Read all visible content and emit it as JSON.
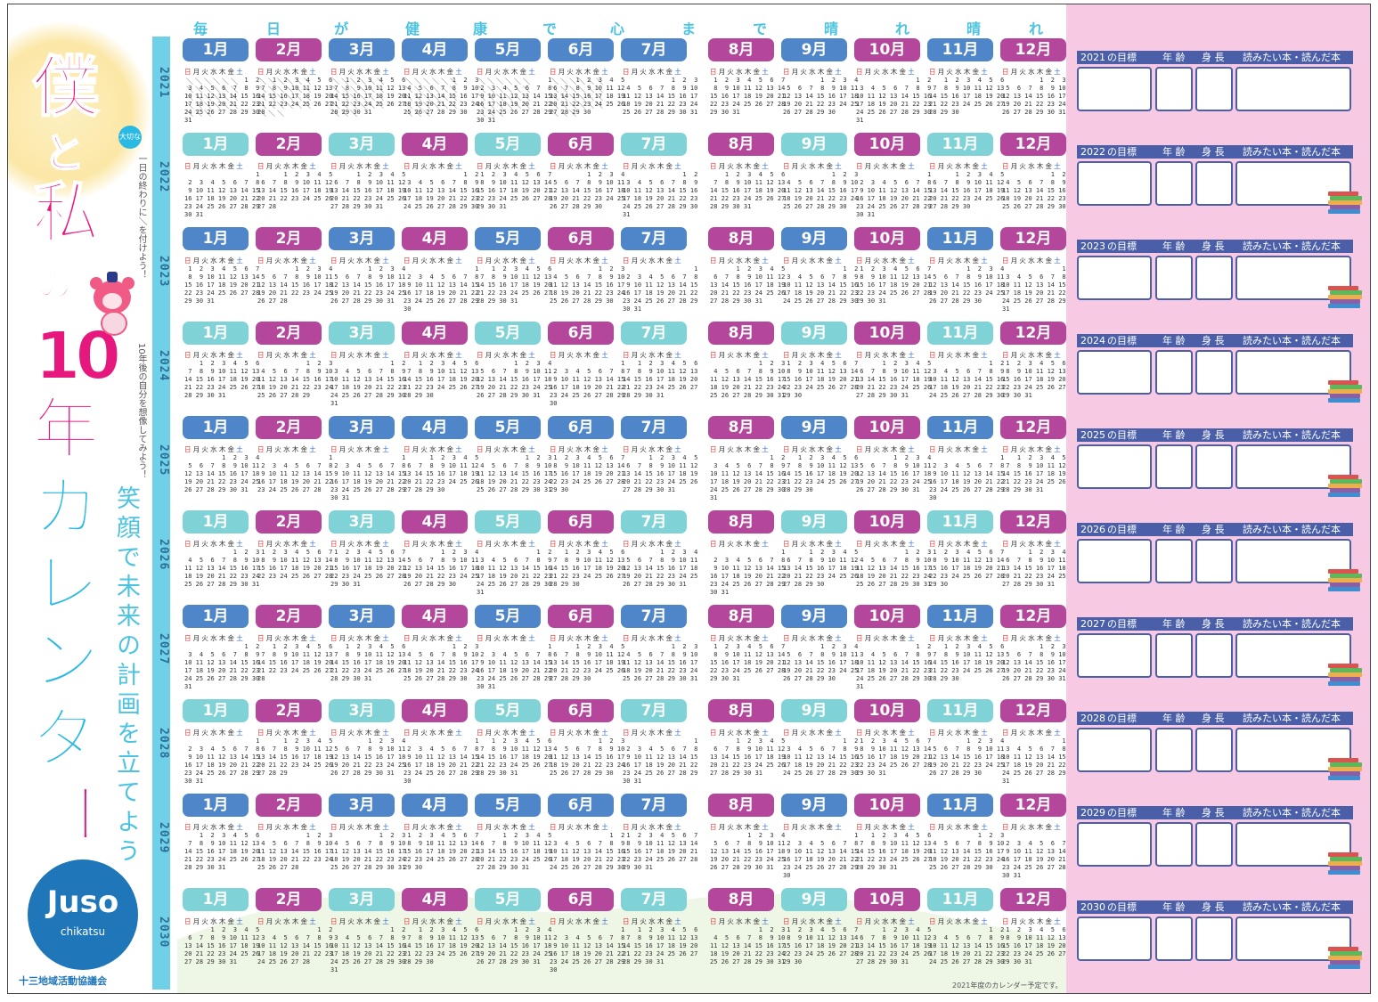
{
  "title": {
    "line1": "僕",
    "line2": "と",
    "line3": "私",
    "line4": "の",
    "line5": "10",
    "line6": "年",
    "line7": "カ",
    "line8": "レ",
    "line9": "ン",
    "line10": "ダ",
    "line11": "ー",
    "badge": "大切な",
    "memo1": "一日の終わりに＼を付けよう！",
    "memo2": "10年後の自分を想像してみよう！"
  },
  "header_chars": [
    "毎",
    "日",
    "が",
    "健",
    "康",
    "で",
    "心",
    "ま",
    "で",
    "晴",
    "れ",
    "晴",
    "れ"
  ],
  "slogan": "笑顔で未来の計画を立てよう",
  "logo": {
    "mark": "Juso",
    "sub": "chikatsu"
  },
  "organization": "十三地域活動協議会",
  "note": "2021年度のカレンダー予定です。",
  "years": [
    "2021",
    "2022",
    "2023",
    "2024",
    "2025",
    "2026",
    "2027",
    "2028",
    "2029",
    "2030"
  ],
  "month_labels": [
    "1月",
    "2月",
    "3月",
    "4月",
    "5月",
    "6月",
    "7月",
    "8月",
    "9月",
    "10月",
    "11月",
    "12月"
  ],
  "weekdays": [
    "日",
    "月",
    "火",
    "水",
    "木",
    "金",
    "土"
  ],
  "goal_headers": {
    "goal": "の目標",
    "age": "年 齢",
    "height": "身 長",
    "books": "読みたい本・読んだ本"
  },
  "colors": {
    "blue_tab": "#4e86c9",
    "magenta_tab": "#b4479b",
    "teal_tab": "#7fd3d6",
    "title_pink": "#e6177d",
    "title_cyan": "#2ab9e3",
    "right_panel": "#f8c9e3",
    "goal_bar": "#4a5fa8"
  }
}
